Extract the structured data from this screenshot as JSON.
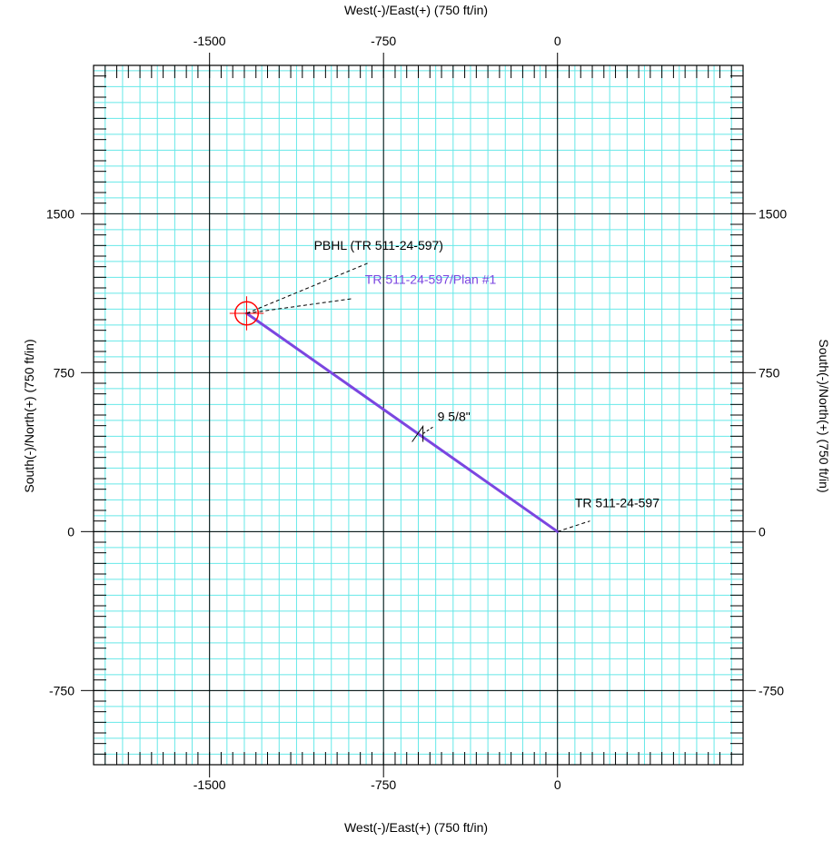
{
  "chart_data": {
    "type": "line",
    "x_axis": {
      "label_top": "West(-)/East(+) (750 ft/in)",
      "label_bottom": "West(-)/East(+) (750 ft/in)",
      "range": [
        -2000,
        800
      ],
      "major_ticks": [
        -1500,
        -750,
        0
      ],
      "major_tick_labels": [
        "-1500",
        "-750",
        "0"
      ],
      "minor_step": 75,
      "tick_mark_step": 50
    },
    "y_axis": {
      "label_left": "South(-)/North(+) (750 ft/in)",
      "label_right": "South(-)/North(+) (750 ft/in)",
      "range": [
        -1100,
        2200
      ],
      "major_ticks": [
        -750,
        0,
        750,
        1500
      ],
      "major_tick_labels": [
        "-750",
        "0",
        "750",
        "1500"
      ],
      "minor_step": 75,
      "tick_mark_step": 50
    },
    "grid": true,
    "colors": {
      "minor_grid": "#66e8e8",
      "major_grid": "#000000",
      "well_path": "#7b46e0",
      "target": "#ff0000",
      "plan_label": "#7b46e0",
      "text": "#000000"
    },
    "series": [
      {
        "x": [
          0,
          -1340
        ],
        "y": [
          0,
          1030
        ]
      }
    ],
    "target": {
      "x": -1340,
      "y": 1030,
      "radius": 50
    },
    "casing": {
      "x": -580,
      "y": 445,
      "label": "9 5/8\""
    },
    "annotations": [
      {
        "text": "PBHL (TR  511-24-597)",
        "text_x": -1050,
        "text_y": 1330,
        "leader_x": -810,
        "leader_y": 1270,
        "point_x": -1340,
        "point_y": 1030,
        "color": "#000000"
      },
      {
        "text": "TR  511-24-597/Plan  #1",
        "text_x": -830,
        "text_y": 1170,
        "leader_x": -880,
        "leader_y": 1100,
        "point_x": -1340,
        "point_y": 1030,
        "color": "#7b46e0"
      },
      {
        "text": "TR  511-24-597",
        "text_x": 75,
        "text_y": 115,
        "leader_x": 140,
        "leader_y": 50,
        "point_x": 0,
        "point_y": 0,
        "color": "#000000"
      }
    ]
  }
}
